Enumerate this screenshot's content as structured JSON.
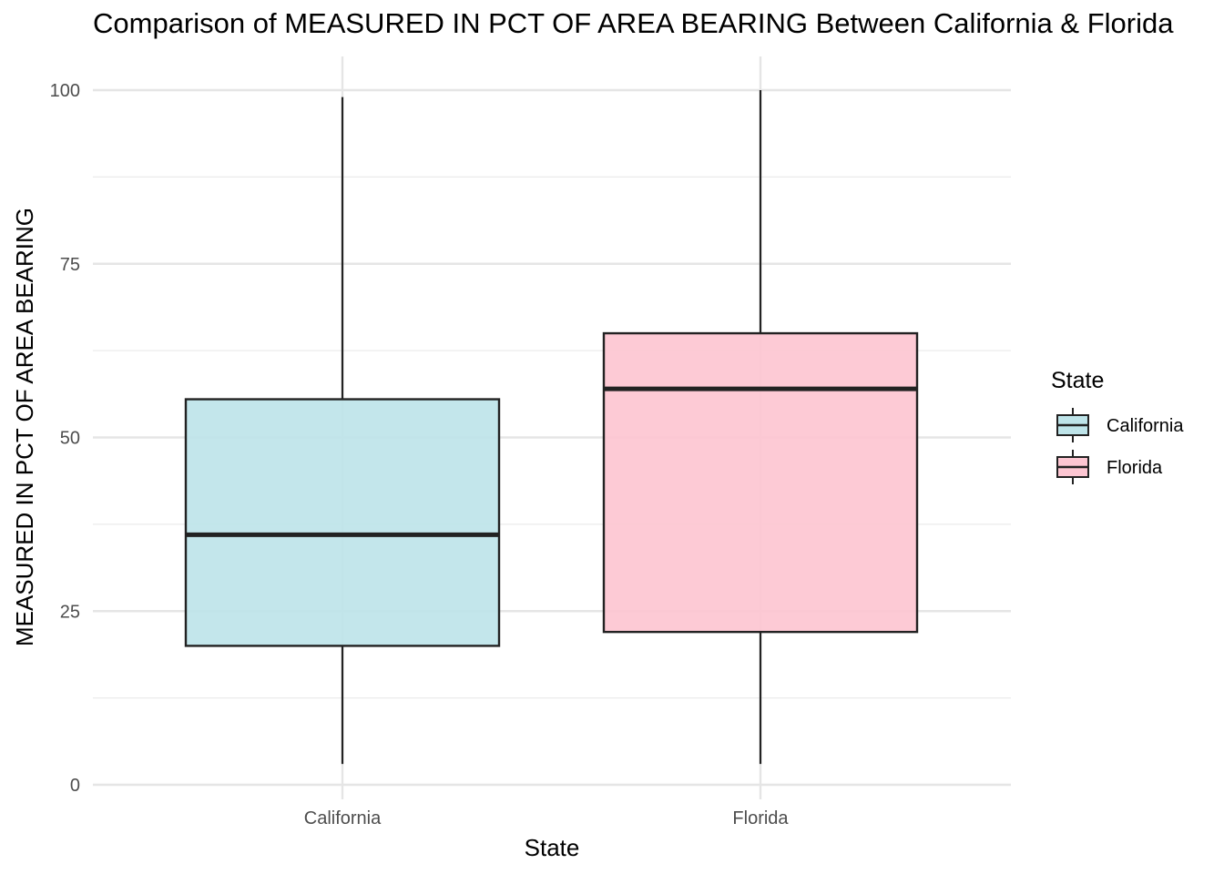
{
  "chart_data": {
    "type": "box",
    "title": "Comparison of MEASURED IN PCT OF AREA BEARING Between California & Florida",
    "xlabel": "State",
    "ylabel": "MEASURED IN PCT OF AREA BEARING",
    "ylim": [
      -2,
      104.5
    ],
    "yticks": [
      0,
      25,
      50,
      75,
      100
    ],
    "grid": true,
    "legend": {
      "title": "State",
      "position": "right"
    },
    "categories": [
      "California",
      "Florida"
    ],
    "series": [
      {
        "name": "California",
        "color": "#BEE4E9",
        "whisker_low": 3,
        "q1": 20,
        "median": 36,
        "q3": 55.5,
        "whisker_high": 99
      },
      {
        "name": "Florida",
        "color": "#FDC6D2",
        "whisker_low": 3,
        "q1": 22,
        "median": 57,
        "q3": 65,
        "whisker_high": 100
      }
    ]
  }
}
